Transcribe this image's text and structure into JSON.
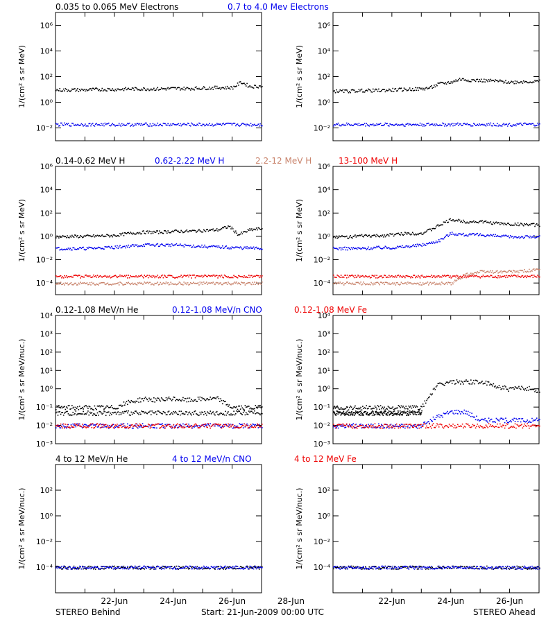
{
  "footer": {
    "left": "STEREO Behind",
    "center": "Start: 21-Jun-2009 00:00 UTC",
    "right": "STEREO Ahead"
  },
  "xticks": [
    "22-Jun",
    "24-Jun",
    "26-Jun",
    "28-Jun"
  ],
  "colors": {
    "black": "#000000",
    "blue": "#0000ee",
    "tan": "#c8826a",
    "red": "#ee0000"
  },
  "chart_data": [
    {
      "type": "scatter",
      "row_title": [
        {
          "text": "0.035 to 0.065 MeV Electrons",
          "color": "#000000"
        },
        {
          "text": "0.7 to 4.0 Mev Electrons",
          "color": "#0000ee"
        }
      ],
      "ylabel": "1/(cm² s sr MeV)",
      "yscale": "log",
      "ylim": [
        0.001,
        10000000
      ],
      "ytick_exponents": [
        -2,
        0,
        2,
        4,
        6
      ],
      "xlim": [
        "2009-06-21",
        "2009-06-28"
      ],
      "panels": [
        {
          "spacecraft": "STEREO Behind",
          "series": [
            {
              "color": "#000000",
              "x": [
                0,
                0.5,
                1,
                1.5,
                2,
                2.5,
                3,
                3.5,
                4,
                4.5,
                5,
                5.5,
                6,
                6.3,
                6.6,
                7
              ],
              "y": [
                10,
                10,
                10,
                11,
                11,
                12,
                12,
                12,
                13,
                13,
                14,
                15,
                15,
                40,
                18,
                20
              ]
            },
            {
              "color": "#0000ee",
              "x": [
                0,
                1,
                2,
                3,
                4,
                5,
                6,
                7
              ],
              "y": [
                0.02,
                0.02,
                0.02,
                0.02,
                0.02,
                0.02,
                0.02,
                0.02
              ]
            }
          ]
        },
        {
          "spacecraft": "STEREO Ahead",
          "series": [
            {
              "color": "#000000",
              "x": [
                0,
                0.5,
                1,
                1.5,
                2,
                2.5,
                3,
                3.3,
                3.6,
                4,
                4.3,
                4.6,
                5,
                5.5,
                6,
                6.5,
                7
              ],
              "y": [
                8,
                8,
                9,
                9,
                10,
                11,
                12,
                15,
                30,
                40,
                70,
                60,
                55,
                50,
                40,
                45,
                45
              ]
            },
            {
              "color": "#0000ee",
              "x": [
                0,
                1,
                2,
                3,
                4,
                5,
                6,
                7
              ],
              "y": [
                0.02,
                0.02,
                0.02,
                0.02,
                0.02,
                0.02,
                0.02,
                0.02
              ]
            }
          ]
        }
      ]
    },
    {
      "type": "scatter",
      "row_title": [
        {
          "text": "0.14-0.62 MeV H",
          "color": "#000000"
        },
        {
          "text": "0.62-2.22 MeV H",
          "color": "#0000ee"
        },
        {
          "text": "2.2-12 MeV H",
          "color": "#c8826a"
        },
        {
          "text": "13-100 MeV H",
          "color": "#ee0000"
        }
      ],
      "ylabel": "1/(cm² s sr MeV)",
      "yscale": "log",
      "ylim": [
        1e-05,
        1000000
      ],
      "ytick_exponents": [
        -4,
        -2,
        0,
        2,
        4,
        6
      ],
      "xlim": [
        "2009-06-21",
        "2009-06-28"
      ],
      "panels": [
        {
          "spacecraft": "STEREO Behind",
          "series": [
            {
              "color": "#000000",
              "x": [
                0,
                0.5,
                1,
                1.5,
                2,
                2.5,
                3,
                3.5,
                4,
                4.5,
                5,
                5.5,
                5.9,
                6.2,
                6.6,
                7
              ],
              "y": [
                1,
                1.1,
                1.1,
                1.2,
                1.3,
                2,
                2.5,
                2.5,
                3,
                3,
                3.5,
                4,
                8,
                1.5,
                4,
                5
              ]
            },
            {
              "color": "#0000ee",
              "x": [
                0,
                1,
                2,
                3,
                4,
                5,
                6,
                7
              ],
              "y": [
                0.1,
                0.1,
                0.13,
                0.2,
                0.2,
                0.15,
                0.12,
                0.1
              ]
            },
            {
              "color": "#c8826a",
              "x": [
                0,
                1,
                2,
                3,
                4,
                5,
                6,
                7
              ],
              "y": [
                0.0001,
                0.0001,
                0.0001,
                0.0001,
                0.0001,
                0.0001,
                0.0001,
                0.0001
              ]
            },
            {
              "color": "#ee0000",
              "x": [
                0,
                1,
                2,
                3,
                4,
                5,
                6,
                7
              ],
              "y": [
                0.0004,
                0.0004,
                0.0004,
                0.0004,
                0.0004,
                0.0004,
                0.0004,
                0.0004
              ]
            }
          ]
        },
        {
          "spacecraft": "STEREO Ahead",
          "series": [
            {
              "color": "#000000",
              "x": [
                0,
                0.5,
                1,
                1.5,
                2,
                2.5,
                3,
                3.3,
                3.6,
                4,
                4.5,
                5,
                5.5,
                6,
                6.5,
                7
              ],
              "y": [
                1,
                1,
                1.2,
                1.2,
                1.5,
                2,
                2,
                4,
                10,
                30,
                20,
                20,
                15,
                12,
                12,
                10
              ]
            },
            {
              "color": "#0000ee",
              "x": [
                0,
                0.5,
                1,
                1.5,
                2,
                2.5,
                3,
                3.3,
                3.6,
                4,
                4.5,
                5,
                5.5,
                6,
                6.5,
                7
              ],
              "y": [
                0.1,
                0.1,
                0.1,
                0.12,
                0.12,
                0.15,
                0.2,
                0.3,
                0.5,
                2,
                1.5,
                1.5,
                1.2,
                1,
                1,
                1
              ]
            },
            {
              "color": "#c8826a",
              "x": [
                0,
                1,
                2,
                3,
                4,
                4.5,
                5,
                6,
                7
              ],
              "y": [
                0.0001,
                0.0001,
                0.0001,
                0.0001,
                0.0001,
                0.0006,
                0.001,
                0.001,
                0.0015
              ]
            },
            {
              "color": "#ee0000",
              "x": [
                0,
                1,
                2,
                3,
                4,
                5,
                6,
                7
              ],
              "y": [
                0.0004,
                0.0004,
                0.0004,
                0.0004,
                0.0004,
                0.0004,
                0.0004,
                0.0004
              ]
            }
          ]
        }
      ]
    },
    {
      "type": "scatter",
      "row_title": [
        {
          "text": "0.12-1.08 MeV/n He",
          "color": "#000000"
        },
        {
          "text": "0.12-1.08 MeV/n CNO",
          "color": "#0000ee"
        },
        {
          "text": "0.12-1.08 MeV Fe",
          "color": "#ee0000"
        }
      ],
      "ylabel": "1/(cm² s sr MeV/nuc.)",
      "yscale": "log",
      "ylim": [
        0.001,
        10000
      ],
      "ytick_exponents": [
        -3,
        -2,
        -1,
        0,
        1,
        2,
        3,
        4
      ],
      "xlim": [
        "2009-06-21",
        "2009-06-28"
      ],
      "panels": [
        {
          "spacecraft": "STEREO Behind",
          "series": [
            {
              "color": "#000000",
              "x": [
                0,
                1,
                2,
                2.5,
                3,
                3.5,
                4,
                4.5,
                5,
                5.5,
                6,
                6.5,
                7
              ],
              "y": [
                0.1,
                0.1,
                0.1,
                0.2,
                0.3,
                0.25,
                0.3,
                0.25,
                0.3,
                0.3,
                0.1,
                0.1,
                0.1
              ]
            },
            {
              "color": "#000000",
              "x": [
                0,
                1,
                2,
                3,
                4,
                5,
                6,
                7
              ],
              "y": [
                0.05,
                0.05,
                0.05,
                0.05,
                0.05,
                0.05,
                0.05,
                0.05
              ]
            },
            {
              "color": "#0000ee",
              "x": [
                0,
                1,
                2,
                3,
                4,
                5,
                6,
                7
              ],
              "y": [
                0.01,
                0.01,
                0.01,
                0.01,
                0.01,
                0.01,
                0.01,
                0.01
              ]
            },
            {
              "color": "#ee0000",
              "x": [
                0,
                1,
                2,
                3,
                4,
                5,
                6,
                7
              ],
              "y": [
                0.01,
                0.01,
                0.01,
                0.01,
                0.01,
                0.01,
                0.01,
                0.01
              ]
            }
          ]
        },
        {
          "spacecraft": "STEREO Ahead",
          "series": [
            {
              "color": "#000000",
              "x": [
                0,
                1,
                2,
                3,
                3.2,
                3.5,
                4,
                4.5,
                5,
                5.5,
                6,
                6.5,
                7
              ],
              "y": [
                0.1,
                0.1,
                0.1,
                0.1,
                0.3,
                1.5,
                2.5,
                2.5,
                2.5,
                1.5,
                1,
                1.2,
                0.8
              ]
            },
            {
              "color": "#000000",
              "x": [
                0,
                1,
                2,
                3
              ],
              "y": [
                0.05,
                0.05,
                0.05,
                0.05
              ]
            },
            {
              "color": "#0000ee",
              "x": [
                0,
                1,
                2,
                3,
                3.5,
                4,
                4.5,
                5,
                6,
                7
              ],
              "y": [
                0.01,
                0.01,
                0.01,
                0.01,
                0.03,
                0.06,
                0.06,
                0.02,
                0.02,
                0.02
              ]
            },
            {
              "color": "#ee0000",
              "x": [
                0,
                1,
                2,
                3,
                4,
                5,
                6,
                7
              ],
              "y": [
                0.01,
                0.01,
                0.01,
                0.01,
                0.01,
                0.01,
                0.01,
                0.01
              ]
            }
          ]
        }
      ]
    },
    {
      "type": "scatter",
      "row_title": [
        {
          "text": "4 to 12 MeV/n He",
          "color": "#000000"
        },
        {
          "text": "4 to 12 MeV/n CNO",
          "color": "#0000ee"
        },
        {
          "text": "4 to 12 MeV Fe",
          "color": "#ee0000"
        }
      ],
      "ylabel": "1/(cm² s sr MeV/nuc.)",
      "yscale": "log",
      "ylim": [
        1e-06,
        10000
      ],
      "ytick_exponents": [
        -4,
        -2,
        0,
        2
      ],
      "xlim": [
        "2009-06-21",
        "2009-06-28"
      ],
      "panels": [
        {
          "spacecraft": "STEREO Behind",
          "series": [
            {
              "color": "#000000",
              "x": [
                0,
                7
              ],
              "y": [
                0.0001,
                0.0001
              ]
            },
            {
              "color": "#0000ee",
              "x": [
                0,
                7
              ],
              "y": [
                0.0001,
                0.0001
              ]
            }
          ]
        },
        {
          "spacecraft": "STEREO Ahead",
          "series": [
            {
              "color": "#000000",
              "x": [
                0,
                7
              ],
              "y": [
                0.0001,
                0.0001
              ]
            },
            {
              "color": "#0000ee",
              "x": [
                0,
                7
              ],
              "y": [
                0.0001,
                0.0001
              ]
            }
          ]
        }
      ]
    }
  ]
}
